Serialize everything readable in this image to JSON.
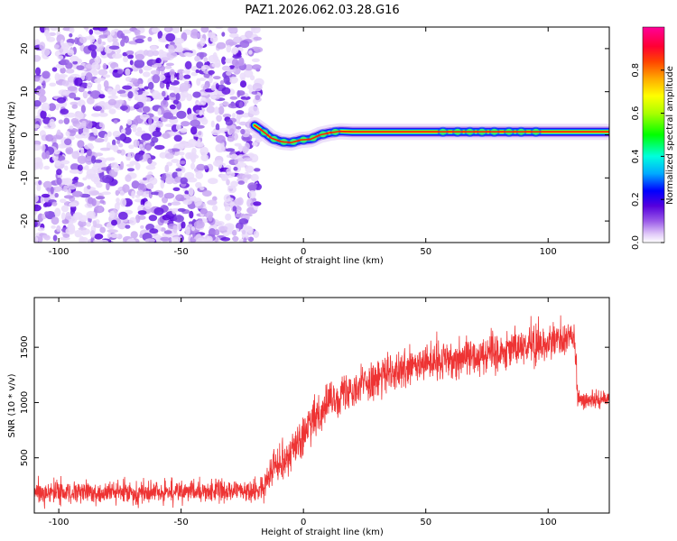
{
  "title": "PAZ1.2026.062.03.28.G16",
  "colors": {
    "snr_line": "#ee3333",
    "rainbow": [
      "#ffffff",
      "#e8d8f8",
      "#b890f0",
      "#7a2ee0",
      "#5500dd",
      "#0000ff",
      "#00aaff",
      "#00ffcc",
      "#00ff00",
      "#aaff00",
      "#ffff00",
      "#ffaa00",
      "#ff5500",
      "#ff0000",
      "#ff0080",
      "#ff00aa"
    ]
  },
  "chart_data": [
    {
      "type": "heatmap",
      "xlabel": "Height of straight line (km)",
      "ylabel": "Frequency (Hz)",
      "xlim": [
        -110,
        125
      ],
      "ylim": [
        -25,
        25
      ],
      "xticks": [
        -100,
        -50,
        0,
        50,
        100
      ],
      "yticks": [
        -20,
        -10,
        0,
        10,
        20
      ],
      "noise_region_x": [
        -110,
        -18
      ],
      "ridge": {
        "x": [
          -20,
          -17,
          -13,
          -9,
          -5,
          -1,
          3,
          7,
          11,
          15,
          20,
          40,
          60,
          80,
          100,
          125
        ],
        "freq": [
          2.2,
          1.0,
          -0.8,
          -1.6,
          -1.8,
          -1.2,
          -1.0,
          0.0,
          0.5,
          0.8,
          0.7,
          0.7,
          0.7,
          0.7,
          0.7,
          0.7
        ]
      },
      "colorbar": {
        "label": "Normalized spectral amplitude",
        "range": [
          0,
          1
        ],
        "ticks": [
          "0.0",
          "0.2",
          "0.4",
          "0.6",
          "0.8"
        ]
      }
    },
    {
      "type": "line",
      "xlabel": "Height of straight line (km)",
      "ylabel": "SNR (10 * v/v)",
      "xlim": [
        -110,
        125
      ],
      "ylim": [
        0,
        1950
      ],
      "xticks": [
        -100,
        -50,
        0,
        50,
        100
      ],
      "yticks": [
        500,
        1000,
        1500
      ],
      "trend": {
        "x": [
          -110,
          -60,
          -20,
          -16,
          -14,
          -5,
          0,
          5,
          10,
          20,
          30,
          50,
          70,
          90,
          111,
          112,
          125
        ],
        "snr": [
          180,
          185,
          200,
          220,
          400,
          550,
          700,
          870,
          1000,
          1130,
          1220,
          1350,
          1430,
          1510,
          1580,
          1020,
          1030
        ]
      },
      "noise_amplitude": [
        {
          "x": [
            -110,
            -15
          ],
          "amp": 110
        },
        {
          "x": [
            -15,
            112
          ],
          "amp": 190
        },
        {
          "x": [
            112,
            125
          ],
          "amp": 90
        }
      ]
    }
  ]
}
